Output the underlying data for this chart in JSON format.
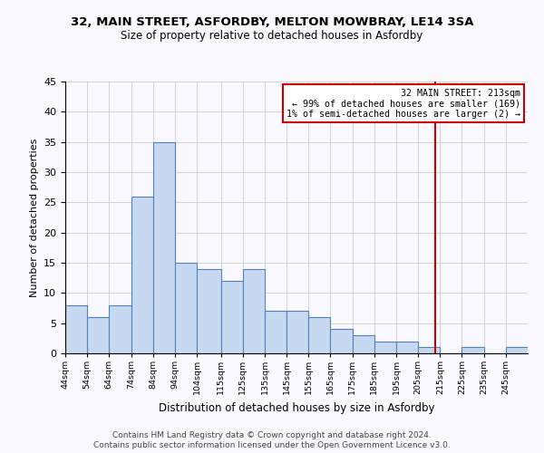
{
  "title": "32, MAIN STREET, ASFORDBY, MELTON MOWBRAY, LE14 3SA",
  "subtitle": "Size of property relative to detached houses in Asfordby",
  "xlabel": "Distribution of detached houses by size in Asfordby",
  "ylabel": "Number of detached properties",
  "footer_line1": "Contains HM Land Registry data © Crown copyright and database right 2024.",
  "footer_line2": "Contains public sector information licensed under the Open Government Licence v3.0.",
  "bin_labels": [
    "44sqm",
    "54sqm",
    "64sqm",
    "74sqm",
    "84sqm",
    "94sqm",
    "104sqm",
    "115sqm",
    "125sqm",
    "135sqm",
    "145sqm",
    "155sqm",
    "165sqm",
    "175sqm",
    "185sqm",
    "195sqm",
    "205sqm",
    "215sqm",
    "225sqm",
    "235sqm",
    "245sqm"
  ],
  "bin_edges": [
    44,
    54,
    64,
    74,
    84,
    94,
    104,
    115,
    125,
    135,
    145,
    155,
    165,
    175,
    185,
    195,
    205,
    215,
    225,
    235,
    245,
    255
  ],
  "counts": [
    8,
    6,
    8,
    26,
    35,
    15,
    14,
    12,
    14,
    7,
    7,
    6,
    4,
    3,
    2,
    2,
    1,
    0,
    1,
    0,
    1
  ],
  "bar_color": "#c6d9f0",
  "bar_edge_color": "#5080c0",
  "marker_value": 213,
  "marker_color": "#cc0000",
  "annotation_title": "32 MAIN STREET: 213sqm",
  "annotation_line1": "← 99% of detached houses are smaller (169)",
  "annotation_line2": "1% of semi-detached houses are larger (2) →",
  "annotation_box_color": "#cc0000",
  "ylim": [
    0,
    45
  ],
  "yticks": [
    0,
    5,
    10,
    15,
    20,
    25,
    30,
    35,
    40,
    45
  ],
  "grid_color": "#cccccc",
  "bg_color": "#f9f9ff",
  "title_fontsize": 9.5,
  "subtitle_fontsize": 8.5
}
